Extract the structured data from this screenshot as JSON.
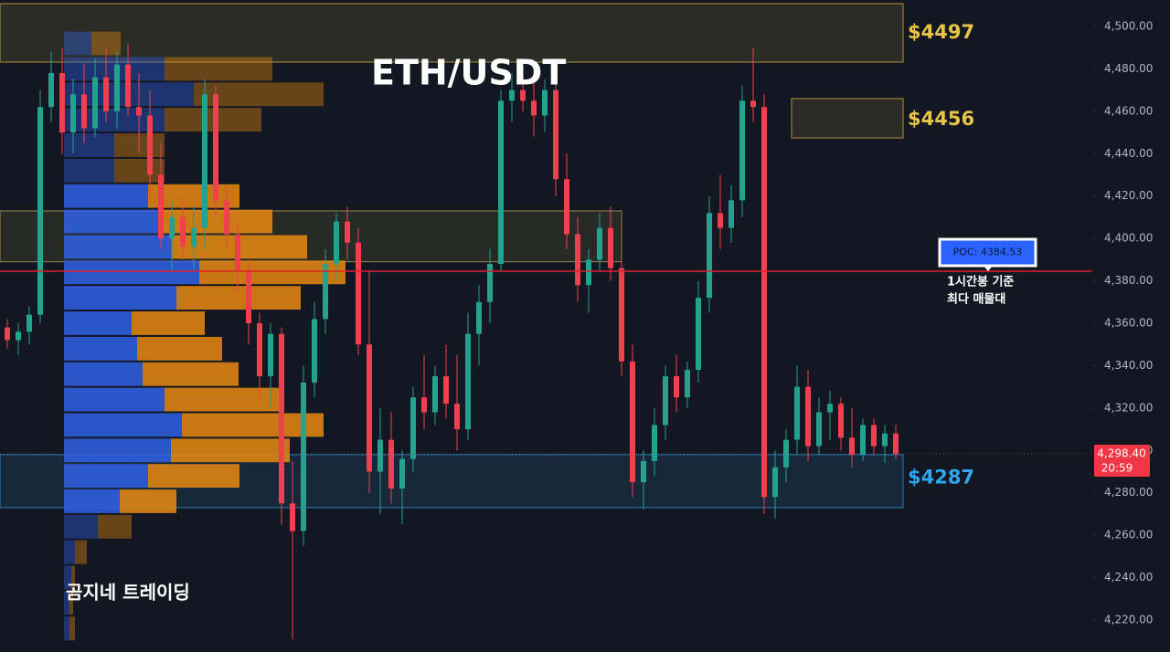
{
  "chart_data": {
    "type": "candlestick",
    "title": "ETH/USDT",
    "watermark": "곰지네 트레이딩",
    "ylim": [
      4204.9,
      4512.5
    ],
    "yticks": [
      {
        "value": 4220,
        "label": "4,220.00"
      },
      {
        "value": 4240,
        "label": "4,240.00"
      },
      {
        "value": 4260,
        "label": "4,260.00"
      },
      {
        "value": 4280,
        "label": "4,280.00"
      },
      {
        "value": 4300,
        "label": "4,300.00"
      },
      {
        "value": 4320,
        "label": "4,320.00"
      },
      {
        "value": 4340,
        "label": "4,340.00"
      },
      {
        "value": 4360,
        "label": "4,360.00"
      },
      {
        "value": 4380,
        "label": "4,380.00"
      },
      {
        "value": 4400,
        "label": "4,400.00"
      },
      {
        "value": 4420,
        "label": "4,420.00"
      },
      {
        "value": 4440,
        "label": "4,440.00"
      },
      {
        "value": 4460,
        "label": "4,460.00"
      },
      {
        "value": 4480,
        "label": "4,480.00"
      },
      {
        "value": 4500,
        "label": "4,500.00"
      }
    ],
    "colors": {
      "up": "#22a28f",
      "down": "#f0404f"
    },
    "candles": [
      [
        4358,
        4362,
        4348,
        4352
      ],
      [
        4352,
        4360,
        4345,
        4356
      ],
      [
        4356,
        4368,
        4350,
        4364
      ],
      [
        4364,
        4470,
        4360,
        4462
      ],
      [
        4462,
        4488,
        4455,
        4478
      ],
      [
        4478,
        4490,
        4440,
        4450
      ],
      [
        4450,
        4475,
        4440,
        4468
      ],
      [
        4468,
        4482,
        4445,
        4452
      ],
      [
        4452,
        4485,
        4448,
        4476
      ],
      [
        4476,
        4490,
        4455,
        4460
      ],
      [
        4460,
        4488,
        4452,
        4482
      ],
      [
        4482,
        4492,
        4458,
        4462
      ],
      [
        4462,
        4478,
        4440,
        4458
      ],
      [
        4458,
        4470,
        4420,
        4430
      ],
      [
        4430,
        4445,
        4395,
        4400
      ],
      [
        4400,
        4418,
        4385,
        4410
      ],
      [
        4410,
        4420,
        4390,
        4396
      ],
      [
        4396,
        4415,
        4385,
        4405
      ],
      [
        4405,
        4475,
        4395,
        4468
      ],
      [
        4468,
        4472,
        4410,
        4418
      ],
      [
        4418,
        4425,
        4395,
        4402
      ],
      [
        4402,
        4408,
        4375,
        4385
      ],
      [
        4385,
        4390,
        4350,
        4360
      ],
      [
        4360,
        4365,
        4325,
        4335
      ],
      [
        4335,
        4360,
        4320,
        4355
      ],
      [
        4355,
        4358,
        4265,
        4275
      ],
      [
        4275,
        4295,
        4211,
        4262
      ],
      [
        4262,
        4340,
        4255,
        4332
      ],
      [
        4332,
        4370,
        4325,
        4362
      ],
      [
        4362,
        4395,
        4355,
        4388
      ],
      [
        4388,
        4412,
        4380,
        4408
      ],
      [
        4408,
        4415,
        4390,
        4398
      ],
      [
        4398,
        4405,
        4345,
        4350
      ],
      [
        4350,
        4385,
        4280,
        4290
      ],
      [
        4290,
        4320,
        4270,
        4305
      ],
      [
        4305,
        4318,
        4275,
        4282
      ],
      [
        4282,
        4300,
        4265,
        4296
      ],
      [
        4296,
        4330,
        4290,
        4325
      ],
      [
        4325,
        4345,
        4310,
        4318
      ],
      [
        4318,
        4340,
        4312,
        4335
      ],
      [
        4335,
        4350,
        4315,
        4322
      ],
      [
        4322,
        4345,
        4300,
        4310
      ],
      [
        4310,
        4365,
        4305,
        4355
      ],
      [
        4355,
        4378,
        4340,
        4370
      ],
      [
        4370,
        4395,
        4360,
        4388
      ],
      [
        4388,
        4470,
        4385,
        4465
      ],
      [
        4465,
        4478,
        4455,
        4470
      ],
      [
        4470,
        4482,
        4460,
        4465
      ],
      [
        4465,
        4475,
        4448,
        4458
      ],
      [
        4458,
        4475,
        4450,
        4470
      ],
      [
        4470,
        4478,
        4420,
        4428
      ],
      [
        4428,
        4440,
        4395,
        4402
      ],
      [
        4402,
        4410,
        4370,
        4378
      ],
      [
        4378,
        4395,
        4365,
        4390
      ],
      [
        4390,
        4412,
        4385,
        4405
      ],
      [
        4405,
        4415,
        4380,
        4386
      ],
      [
        4386,
        4390,
        4335,
        4342
      ],
      [
        4342,
        4350,
        4278,
        4285
      ],
      [
        4285,
        4300,
        4272,
        4295
      ],
      [
        4295,
        4320,
        4288,
        4312
      ],
      [
        4312,
        4340,
        4305,
        4335
      ],
      [
        4335,
        4345,
        4318,
        4325
      ],
      [
        4325,
        4342,
        4320,
        4338
      ],
      [
        4338,
        4380,
        4332,
        4372
      ],
      [
        4372,
        4420,
        4365,
        4412
      ],
      [
        4412,
        4430,
        4395,
        4405
      ],
      [
        4405,
        4425,
        4398,
        4418
      ],
      [
        4418,
        4472,
        4410,
        4465
      ],
      [
        4465,
        4490,
        4455,
        4462
      ],
      [
        4462,
        4468,
        4270,
        4278
      ],
      [
        4278,
        4300,
        4268,
        4292
      ],
      [
        4292,
        4310,
        4285,
        4305
      ],
      [
        4305,
        4340,
        4298,
        4330
      ],
      [
        4330,
        4338,
        4295,
        4302
      ],
      [
        4302,
        4325,
        4298,
        4318
      ],
      [
        4318,
        4328,
        4305,
        4322
      ],
      [
        4322,
        4325,
        4300,
        4306
      ],
      [
        4306,
        4320,
        4292,
        4298
      ],
      [
        4298,
        4315,
        4295,
        4312
      ],
      [
        4312,
        4315,
        4298,
        4302
      ],
      [
        4302,
        4312,
        4294,
        4308
      ],
      [
        4308,
        4312,
        4296,
        4298.4
      ]
    ],
    "last_price": {
      "value": 4298.4,
      "label": "4,298.40",
      "countdown": "20:59"
    },
    "poc": {
      "value": 4384.53,
      "label": "POC: 4384.53",
      "note": [
        "1시간봉 기준",
        "최다 매물대"
      ],
      "color": "#e0202a"
    },
    "zones": [
      {
        "top": 4510.8,
        "bottom": 4483.2,
        "level": 4497,
        "label": "$4497",
        "color": "#e8c547"
      },
      {
        "top": 4466,
        "bottom": 4447.4,
        "level": 4456,
        "label": "$4456",
        "color": "#e8c547"
      },
      {
        "top": 4413,
        "bottom": 4389,
        "color": "#c9b45a"
      },
      {
        "top": 4298,
        "bottom": 4273,
        "level": 4287,
        "label": "$4287",
        "color": "#2ea6f0"
      }
    ],
    "volume_profile": {
      "bin_size": 12,
      "rows": [
        {
          "price": 4492,
          "buy": 30,
          "sell": 32,
          "value_area": false
        },
        {
          "price": 4480,
          "buy": 110,
          "sell": 118,
          "value_area": false
        },
        {
          "price": 4468,
          "buy": 142,
          "sell": 142,
          "value_area": false
        },
        {
          "price": 4456,
          "buy": 110,
          "sell": 106,
          "value_area": false
        },
        {
          "price": 4444,
          "buy": 55,
          "sell": 55,
          "value_area": false
        },
        {
          "price": 4432,
          "buy": 55,
          "sell": 55,
          "value_area": false
        },
        {
          "price": 4420,
          "buy": 92,
          "sell": 100,
          "value_area": true
        },
        {
          "price": 4408,
          "buy": 105,
          "sell": 123,
          "value_area": true
        },
        {
          "price": 4396,
          "buy": 118,
          "sell": 148,
          "value_area": true
        },
        {
          "price": 4384,
          "buy": 148,
          "sell": 160,
          "value_area": true
        },
        {
          "price": 4372,
          "buy": 123,
          "sell": 136,
          "value_area": true
        },
        {
          "price": 4360,
          "buy": 74,
          "sell": 80,
          "value_area": true
        },
        {
          "price": 4348,
          "buy": 80,
          "sell": 93,
          "value_area": true
        },
        {
          "price": 4336,
          "buy": 86,
          "sell": 105,
          "value_area": true
        },
        {
          "price": 4324,
          "buy": 110,
          "sell": 131,
          "value_area": true
        },
        {
          "price": 4312,
          "buy": 129,
          "sell": 155,
          "value_area": true
        },
        {
          "price": 4300,
          "buy": 117,
          "sell": 130,
          "value_area": true
        },
        {
          "price": 4288,
          "buy": 92,
          "sell": 100,
          "value_area": true
        },
        {
          "price": 4276,
          "buy": 61,
          "sell": 62,
          "value_area": true
        },
        {
          "price": 4264,
          "buy": 37,
          "sell": 37,
          "value_area": false
        },
        {
          "price": 4252,
          "buy": 12,
          "sell": 13,
          "value_area": false
        },
        {
          "price": 4240,
          "buy": 8,
          "sell": 4,
          "value_area": false
        },
        {
          "price": 4228,
          "buy": 6,
          "sell": 4,
          "value_area": false
        },
        {
          "price": 4216,
          "buy": 6,
          "sell": 6,
          "value_area": false
        }
      ]
    }
  }
}
